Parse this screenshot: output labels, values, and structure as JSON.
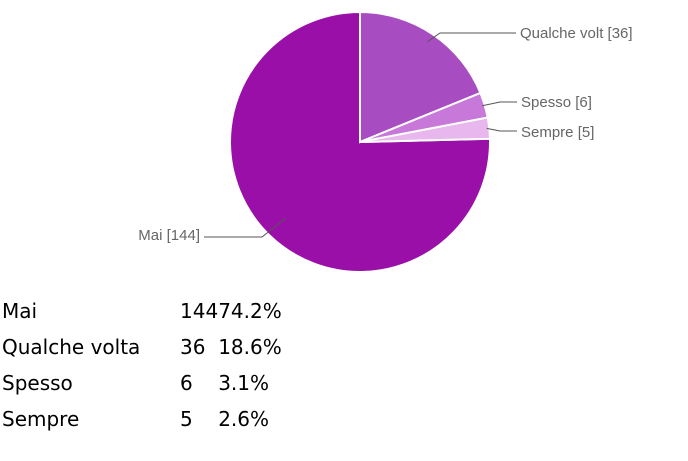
{
  "chart_data": {
    "type": "pie",
    "categories": [
      "Mai",
      "Qualche volta",
      "Spesso",
      "Sempre"
    ],
    "values": [
      144,
      36,
      6,
      5
    ],
    "slice_labels": [
      "Mai [144]",
      "Qualche volt [36]",
      "Spesso [6]",
      "Sempre [5]"
    ],
    "colors": [
      "#9a0fa8",
      "#a84cc2",
      "#c778d8",
      "#e8b7ee"
    ],
    "start": "12 o'clock, clockwise"
  },
  "summary_table": {
    "rows": [
      {
        "label": "Mai",
        "count": "144",
        "percent": "74.2%"
      },
      {
        "label": "Qualche volta",
        "count": "36",
        "percent": "18.6%"
      },
      {
        "label": "Spesso",
        "count": "6",
        "percent": "3.1%"
      },
      {
        "label": "Sempre",
        "count": "5",
        "percent": "2.6%"
      }
    ]
  }
}
